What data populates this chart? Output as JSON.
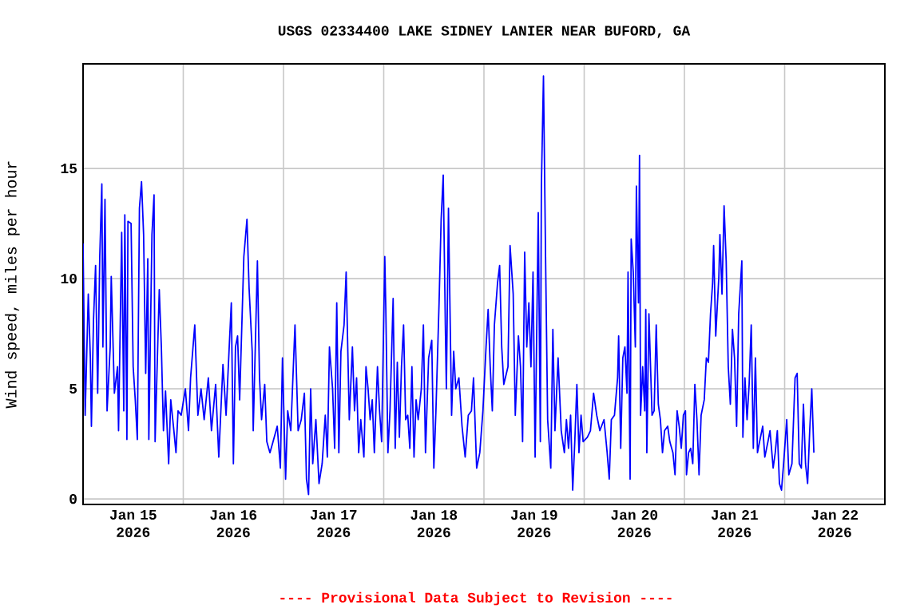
{
  "chart_data": {
    "type": "line",
    "title": "USGS 02334400 LAKE SIDNEY LANIER NEAR BUFORD, GA",
    "ylabel": "Wind speed, miles per hour",
    "annotations": [
      "---- Provisional Data Subject to Revision ----"
    ],
    "xlim": [
      "2026-01-15T00:00",
      "2026-01-23T00:00"
    ],
    "ylim": [
      -0.25,
      19.75
    ],
    "yticks": [
      0,
      5,
      10,
      15
    ],
    "xticks": [
      {
        "value": "2026-01-15T12:00",
        "label": "Jan 15 2026"
      },
      {
        "value": "2026-01-16T12:00",
        "label": "Jan 16 2026"
      },
      {
        "value": "2026-01-17T12:00",
        "label": "Jan 17 2026"
      },
      {
        "value": "2026-01-18T12:00",
        "label": "Jan 18 2026"
      },
      {
        "value": "2026-01-19T12:00",
        "label": "Jan 19 2026"
      },
      {
        "value": "2026-01-20T12:00",
        "label": "Jan 20 2026"
      },
      {
        "value": "2026-01-21T12:00",
        "label": "Jan 21 2026"
      },
      {
        "value": "2026-01-22T12:00",
        "label": "Jan 22 2026"
      },
      {
        "value": "2026-01-16T00:00",
        "label": null
      },
      {
        "value": "2026-01-17T00:00",
        "label": null
      },
      {
        "value": "2026-01-18T00:00",
        "label": null
      },
      {
        "value": "2026-01-19T00:00",
        "label": null
      },
      {
        "value": "2026-01-20T00:00",
        "label": null
      },
      {
        "value": "2026-01-21T00:00",
        "label": null
      },
      {
        "value": "2026-01-22T00:00",
        "label": null
      }
    ],
    "grid": true,
    "x": [
      "2026-01-15T00:00",
      "2026-01-15T00:30",
      "2026-01-15T01:15",
      "2026-01-15T01:45",
      "2026-01-15T02:00",
      "2026-01-15T02:30",
      "2026-01-15T03:00",
      "2026-01-15T03:30",
      "2026-01-15T04:00",
      "2026-01-15T04:30",
      "2026-01-15T04:45",
      "2026-01-15T05:15",
      "2026-01-15T05:45",
      "2026-01-15T06:30",
      "2026-01-15T06:45",
      "2026-01-15T07:30",
      "2026-01-15T08:15",
      "2026-01-15T08:30",
      "2026-01-15T09:15",
      "2026-01-15T09:45",
      "2026-01-15T10:00",
      "2026-01-15T10:30",
      "2026-01-15T10:45",
      "2026-01-15T11:30",
      "2026-01-15T12:00",
      "2026-01-15T12:30",
      "2026-01-15T13:00",
      "2026-01-15T13:30",
      "2026-01-15T14:00",
      "2026-01-15T14:30",
      "2026-01-15T15:00",
      "2026-01-15T15:30",
      "2026-01-15T15:45",
      "2026-01-15T16:30",
      "2026-01-15T17:00",
      "2026-01-15T17:15",
      "2026-01-15T18:15",
      "2026-01-15T18:45",
      "2026-01-15T19:15",
      "2026-01-15T19:45",
      "2026-01-15T20:30",
      "2026-01-15T21:00",
      "2026-01-15T21:45",
      "2026-01-15T22:15",
      "2026-01-15T22:45",
      "2026-01-15T23:30",
      "2026-01-16T00:30",
      "2026-01-16T01:15",
      "2026-01-16T01:45",
      "2026-01-16T02:45",
      "2026-01-16T03:30",
      "2026-01-16T04:15",
      "2026-01-16T05:00",
      "2026-01-16T06:00",
      "2026-01-16T06:45",
      "2026-01-16T07:45",
      "2026-01-16T08:30",
      "2026-01-16T09:30",
      "2026-01-16T10:15",
      "2026-01-16T11:00",
      "2026-01-16T11:30",
      "2026-01-16T12:00",
      "2026-01-16T12:30",
      "2026-01-16T13:00",
      "2026-01-16T13:30",
      "2026-01-16T14:30",
      "2026-01-16T15:15",
      "2026-01-16T15:45",
      "2026-01-16T16:30",
      "2026-01-16T16:45",
      "2026-01-16T17:45",
      "2026-01-16T18:15",
      "2026-01-16T18:45",
      "2026-01-16T19:30",
      "2026-01-16T20:00",
      "2026-01-16T20:45",
      "2026-01-16T21:30",
      "2026-01-16T22:30",
      "2026-01-16T23:15",
      "2026-01-16T23:45",
      "2026-01-17T00:30",
      "2026-01-17T01:00",
      "2026-01-17T01:45",
      "2026-01-17T02:45",
      "2026-01-17T03:30",
      "2026-01-17T04:15",
      "2026-01-17T05:00",
      "2026-01-17T05:30",
      "2026-01-17T06:00",
      "2026-01-17T06:30",
      "2026-01-17T07:00",
      "2026-01-17T07:45",
      "2026-01-17T08:30",
      "2026-01-17T09:15",
      "2026-01-17T10:00",
      "2026-01-17T10:30",
      "2026-01-17T11:00",
      "2026-01-17T11:45",
      "2026-01-17T12:15",
      "2026-01-17T12:45",
      "2026-01-17T13:15",
      "2026-01-17T13:45",
      "2026-01-17T14:30",
      "2026-01-17T15:00",
      "2026-01-17T15:45",
      "2026-01-17T16:30",
      "2026-01-17T17:00",
      "2026-01-17T17:30",
      "2026-01-17T18:00",
      "2026-01-17T18:30",
      "2026-01-17T19:15",
      "2026-01-17T19:45",
      "2026-01-17T20:15",
      "2026-01-17T20:45",
      "2026-01-17T21:15",
      "2026-01-17T21:45",
      "2026-01-17T22:30",
      "2026-01-17T23:00",
      "2026-01-17T23:30",
      "2026-01-18T00:15",
      "2026-01-18T00:30",
      "2026-01-18T01:00",
      "2026-01-18T01:30",
      "2026-01-18T02:15",
      "2026-01-18T02:45",
      "2026-01-18T03:15",
      "2026-01-18T03:45",
      "2026-01-18T04:15",
      "2026-01-18T04:45",
      "2026-01-18T05:15",
      "2026-01-18T05:45",
      "2026-01-18T06:15",
      "2026-01-18T06:45",
      "2026-01-18T07:15",
      "2026-01-18T07:45",
      "2026-01-18T08:15",
      "2026-01-18T09:00",
      "2026-01-18T09:30",
      "2026-01-18T10:00",
      "2026-01-18T10:45",
      "2026-01-18T11:30",
      "2026-01-18T12:00",
      "2026-01-18T12:30",
      "2026-01-18T13:15",
      "2026-01-18T13:45",
      "2026-01-18T14:15",
      "2026-01-18T14:45",
      "2026-01-18T15:00",
      "2026-01-18T15:30",
      "2026-01-18T16:15",
      "2026-01-18T16:45",
      "2026-01-18T17:15",
      "2026-01-18T18:00",
      "2026-01-18T18:45",
      "2026-01-18T19:30",
      "2026-01-18T20:15",
      "2026-01-18T21:00",
      "2026-01-18T21:30",
      "2026-01-18T22:15",
      "2026-01-18T23:00",
      "2026-01-18T23:45",
      "2026-01-19T00:30",
      "2026-01-19T01:00",
      "2026-01-19T01:30",
      "2026-01-19T02:00",
      "2026-01-19T02:30",
      "2026-01-19T03:15",
      "2026-01-19T03:45",
      "2026-01-19T04:15",
      "2026-01-19T04:45",
      "2026-01-19T05:45",
      "2026-01-19T06:15",
      "2026-01-19T07:00",
      "2026-01-19T07:30",
      "2026-01-19T08:15",
      "2026-01-19T08:45",
      "2026-01-19T09:15",
      "2026-01-19T09:45",
      "2026-01-19T10:15",
      "2026-01-19T10:45",
      "2026-01-19T11:15",
      "2026-01-19T11:45",
      "2026-01-19T12:15",
      "2026-01-19T13:00",
      "2026-01-19T13:30",
      "2026-01-19T13:45",
      "2026-01-19T14:15",
      "2026-01-19T14:45",
      "2026-01-19T15:15",
      "2026-01-19T16:00",
      "2026-01-19T16:30",
      "2026-01-19T17:00",
      "2026-01-19T17:45",
      "2026-01-19T18:30",
      "2026-01-19T19:15",
      "2026-01-19T19:45",
      "2026-01-19T20:15",
      "2026-01-19T20:45",
      "2026-01-19T21:15",
      "2026-01-19T21:45",
      "2026-01-19T22:15",
      "2026-01-19T22:45",
      "2026-01-19T23:15",
      "2026-01-19T23:45",
      "2026-01-20T00:45",
      "2026-01-20T01:30",
      "2026-01-20T02:15",
      "2026-01-20T03:00",
      "2026-01-20T03:45",
      "2026-01-20T04:45",
      "2026-01-20T05:30",
      "2026-01-20T06:00",
      "2026-01-20T06:30",
      "2026-01-20T07:15",
      "2026-01-20T08:00",
      "2026-01-20T08:15",
      "2026-01-20T08:45",
      "2026-01-20T09:15",
      "2026-01-20T09:45",
      "2026-01-20T10:15",
      "2026-01-20T10:30",
      "2026-01-20T11:00",
      "2026-01-20T11:15",
      "2026-01-20T11:45",
      "2026-01-20T12:15",
      "2026-01-20T12:30",
      "2026-01-20T13:00",
      "2026-01-20T13:15",
      "2026-01-20T13:30",
      "2026-01-20T13:45",
      "2026-01-20T14:00",
      "2026-01-20T14:30",
      "2026-01-20T14:45",
      "2026-01-20T15:00",
      "2026-01-20T15:30",
      "2026-01-20T16:15",
      "2026-01-20T16:45",
      "2026-01-20T17:15",
      "2026-01-20T17:45",
      "2026-01-20T18:15",
      "2026-01-20T18:45",
      "2026-01-20T19:15",
      "2026-01-20T20:00",
      "2026-01-20T20:30",
      "2026-01-20T21:15",
      "2026-01-20T21:45",
      "2026-01-20T22:15",
      "2026-01-20T22:45",
      "2026-01-20T23:15",
      "2026-01-20T23:45",
      "2026-01-21T00:15",
      "2026-01-21T00:30",
      "2026-01-21T01:00",
      "2026-01-21T01:30",
      "2026-01-21T02:00",
      "2026-01-21T02:30",
      "2026-01-21T03:00",
      "2026-01-21T03:30",
      "2026-01-21T04:00",
      "2026-01-21T04:45",
      "2026-01-21T05:15",
      "2026-01-21T05:45",
      "2026-01-21T06:15",
      "2026-01-21T06:45",
      "2026-01-21T07:00",
      "2026-01-21T07:30",
      "2026-01-21T08:15",
      "2026-01-21T08:30",
      "2026-01-21T09:00",
      "2026-01-21T09:30",
      "2026-01-21T10:00",
      "2026-01-21T10:30",
      "2026-01-21T11:00",
      "2026-01-21T11:30",
      "2026-01-21T12:00",
      "2026-01-21T12:30",
      "2026-01-21T13:00",
      "2026-01-21T13:45",
      "2026-01-21T14:00",
      "2026-01-21T14:30",
      "2026-01-21T15:00",
      "2026-01-21T15:30",
      "2026-01-21T16:00",
      "2026-01-21T16:30",
      "2026-01-21T17:00",
      "2026-01-21T17:30",
      "2026-01-21T18:00",
      "2026-01-21T18:45",
      "2026-01-21T19:15",
      "2026-01-21T20:00",
      "2026-01-21T20:30",
      "2026-01-21T21:15",
      "2026-01-21T21:45",
      "2026-01-21T22:15",
      "2026-01-21T22:45",
      "2026-01-21T23:15",
      "2026-01-21T23:45",
      "2026-01-22T00:30",
      "2026-01-22T01:00",
      "2026-01-22T01:45",
      "2026-01-22T02:30",
      "2026-01-22T03:00",
      "2026-01-22T03:30",
      "2026-01-22T04:00",
      "2026-01-22T04:30",
      "2026-01-22T05:00",
      "2026-01-22T05:30",
      "2026-01-22T06:00",
      "2026-01-22T06:30",
      "2026-01-22T07:00"
    ],
    "series": [
      {
        "color": "#0000ff",
        "values": [
          11.6,
          3.8,
          9.3,
          6.4,
          3.3,
          8.1,
          10.6,
          4.8,
          11.0,
          14.3,
          6.9,
          13.6,
          4.0,
          6.9,
          10.1,
          4.8,
          6.0,
          3.1,
          12.1,
          4.0,
          12.9,
          2.7,
          12.6,
          12.5,
          6.0,
          4.5,
          2.7,
          13.2,
          14.4,
          12.0,
          5.7,
          10.9,
          2.7,
          12.0,
          13.8,
          2.6,
          9.5,
          6.9,
          3.1,
          4.9,
          1.6,
          4.5,
          3.1,
          2.1,
          4.0,
          3.8,
          5.0,
          3.1,
          5.5,
          7.9,
          3.8,
          5.0,
          3.6,
          5.5,
          3.1,
          5.2,
          1.9,
          6.1,
          3.8,
          6.9,
          8.9,
          1.6,
          6.9,
          7.4,
          4.5,
          11.0,
          12.7,
          9.6,
          6.7,
          3.1,
          10.8,
          5.5,
          3.6,
          5.2,
          2.6,
          2.1,
          2.6,
          3.3,
          1.4,
          6.4,
          0.9,
          4.0,
          3.1,
          7.9,
          3.1,
          3.6,
          4.8,
          0.9,
          0.2,
          5.0,
          1.6,
          3.6,
          0.7,
          1.6,
          3.8,
          1.9,
          6.9,
          5.0,
          2.3,
          8.9,
          2.1,
          6.7,
          7.9,
          10.3,
          3.6,
          6.9,
          4.0,
          5.5,
          2.1,
          3.6,
          1.9,
          6.0,
          5.0,
          3.6,
          4.5,
          2.1,
          6.0,
          4.0,
          2.6,
          11.0,
          8.6,
          2.1,
          4.0,
          9.1,
          2.3,
          6.2,
          2.8,
          6.0,
          7.9,
          3.6,
          3.8,
          2.3,
          6.0,
          1.9,
          4.5,
          3.6,
          5.0,
          7.9,
          2.1,
          6.4,
          7.2,
          1.4,
          4.0,
          8.9,
          12.7,
          14.7,
          7.9,
          5.0,
          13.2,
          3.8,
          6.7,
          5.0,
          5.5,
          3.3,
          1.9,
          3.8,
          4.0,
          5.5,
          1.4,
          2.1,
          4.0,
          6.9,
          8.6,
          6.0,
          4.0,
          7.9,
          9.8,
          10.6,
          6.9,
          5.2,
          6.0,
          11.5,
          9.3,
          3.8,
          7.4,
          6.0,
          2.6,
          11.2,
          6.9,
          8.9,
          6.0,
          10.3,
          1.9,
          13.0,
          2.6,
          14.2,
          19.2,
          11.0,
          3.6,
          1.4,
          7.7,
          3.1,
          6.4,
          3.1,
          2.1,
          3.6,
          2.3,
          3.8,
          0.4,
          2.6,
          5.2,
          2.1,
          3.8,
          2.6,
          2.8,
          3.1,
          4.8,
          3.8,
          3.1,
          3.6,
          2.1,
          0.9,
          3.6,
          3.8,
          5.5,
          7.4,
          2.3,
          6.4,
          6.9,
          4.8,
          10.3,
          0.9,
          11.8,
          10.3,
          6.9,
          14.2,
          8.9,
          15.6,
          3.8,
          4.8,
          6.0,
          4.0,
          8.6,
          2.1,
          8.4,
          3.8,
          4.0,
          7.9,
          4.3,
          3.6,
          2.1,
          3.1,
          3.3,
          2.6,
          2.1,
          1.1,
          4.0,
          3.3,
          2.3,
          3.8,
          4.0,
          1.1,
          2.1,
          2.3,
          1.6,
          5.2,
          3.6,
          1.1,
          3.8,
          4.5,
          6.4,
          6.2,
          8.4,
          9.8,
          11.5,
          7.4,
          10.1,
          12.0,
          9.3,
          13.3,
          10.8,
          6.0,
          4.3,
          7.7,
          6.4,
          3.3,
          8.4,
          10.8,
          2.8,
          5.5,
          3.6,
          5.2,
          7.9,
          2.3,
          6.4,
          2.1,
          2.6,
          3.3,
          1.9,
          2.6,
          3.1,
          1.4,
          2.1,
          3.1,
          0.7,
          0.4,
          1.6,
          3.6,
          1.1,
          1.6,
          5.5,
          5.7,
          1.6,
          1.4,
          4.3,
          1.6,
          0.7,
          3.1,
          5.0,
          2.1
        ]
      }
    ]
  }
}
